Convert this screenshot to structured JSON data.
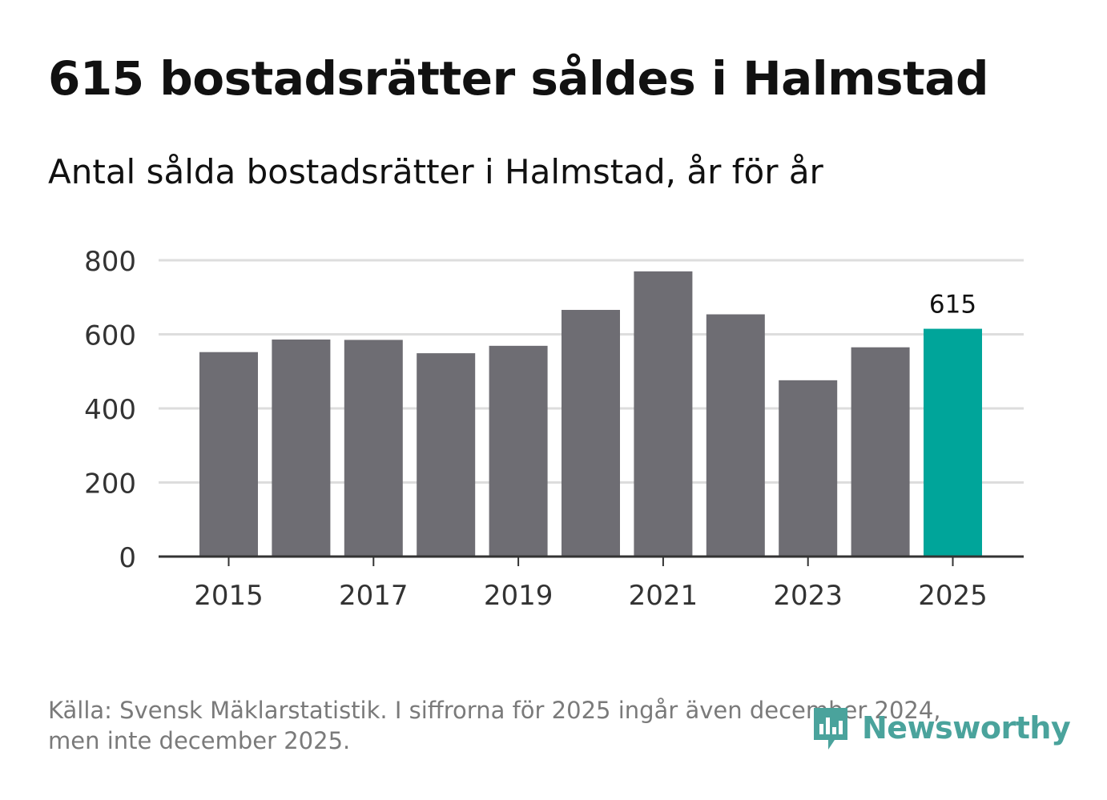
{
  "title": "615 bostadsrätter såldes i Halmstad",
  "subtitle": "Antal sålda bostadsrätter i Halmstad, år för år",
  "footer": {
    "line1": "Källa: Svensk Mäklarstatistik. I siffrorna för 2025 ingår även december 2024,",
    "line2": "men inte december 2025."
  },
  "logo": {
    "text": "Newsworthy",
    "color": "#4aa39c"
  },
  "colors": {
    "bar": "#6e6d73",
    "highlight": "#00a59a",
    "grid": "#dddddd",
    "axis": "#333333",
    "tick_text": "#333333"
  },
  "chart_data": {
    "type": "bar",
    "title": "615 bostadsrätter såldes i Halmstad",
    "subtitle": "Antal sålda bostadsrätter i Halmstad, år för år",
    "categories": [
      "2015",
      "2016",
      "2017",
      "2018",
      "2019",
      "2020",
      "2021",
      "2022",
      "2023",
      "2024",
      "2025"
    ],
    "values": [
      552,
      586,
      585,
      549,
      569,
      666,
      770,
      654,
      476,
      565,
      615
    ],
    "highlight_index": 10,
    "data_labels": [
      {
        "index": 10,
        "text": "615"
      }
    ],
    "x_tick_labels": [
      "2015",
      "2017",
      "2019",
      "2021",
      "2023",
      "2025"
    ],
    "y_ticks": [
      0,
      200,
      400,
      600,
      800
    ],
    "ylim": [
      0,
      800
    ],
    "xlabel": "",
    "ylabel": "",
    "grid": true,
    "legend": "none"
  }
}
